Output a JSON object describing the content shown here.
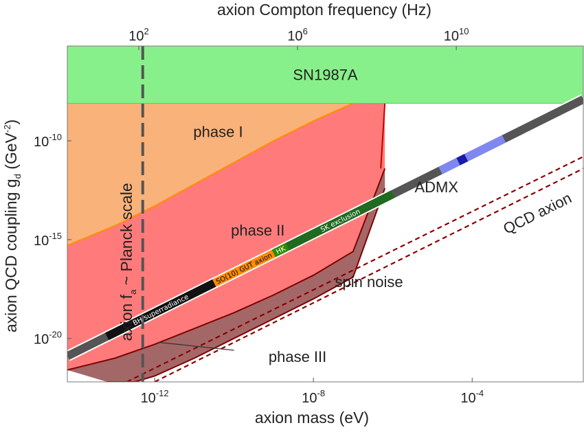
{
  "chart_data": {
    "type": "area",
    "xlabel": "axion mass (eV)",
    "top_xlabel": "axion Compton frequency (Hz)",
    "ylabel": "axion QCD coupling g",
    "ylabel_sub": "d",
    "ylabel_unit": " (GeV",
    "ylabel_unit_exp": "-2",
    "ylabel_unit_close": ")",
    "x_scale": "log",
    "y_scale": "log",
    "xlim_log10_eV": [
      -14.2,
      -1.2
    ],
    "ylim_log10": [
      -22.2,
      -5.2
    ],
    "top_xlim_log10_Hz": [
      0.2,
      13.2
    ],
    "x_ticks": [
      {
        "base": "10",
        "exp": "-12",
        "log": -12
      },
      {
        "base": "10",
        "exp": "-8",
        "log": -8
      },
      {
        "base": "10",
        "exp": "-4",
        "log": -4
      }
    ],
    "top_ticks": [
      {
        "base": "10",
        "exp": "2",
        "log": 2
      },
      {
        "base": "10",
        "exp": "6",
        "log": 6
      },
      {
        "base": "10",
        "exp": "10",
        "log": 10
      }
    ],
    "y_ticks": [
      {
        "base": "10",
        "exp": "-10",
        "log": -10
      },
      {
        "base": "10",
        "exp": "-15",
        "log": -15
      },
      {
        "base": "10",
        "exp": "-20",
        "log": -20
      }
    ],
    "planck_line": {
      "log_mass": -12.3,
      "label_pre": "axion f",
      "label_sub": "a",
      "label_post": " ~ Planck scale",
      "color": "#555555"
    },
    "regions": [
      {
        "name": "SN1987A",
        "color": "#88f08a",
        "edge": "#55cc55",
        "y_log_range": [
          -8.1,
          -5.2
        ]
      },
      {
        "name": "phase I",
        "color": "#f8b27a",
        "edge": "#ff8c00",
        "mass_cutoff_log": -6.2,
        "boundary": [
          [
            -14.2,
            -15.3
          ],
          [
            -13,
            -14.3
          ],
          [
            -12,
            -13.3
          ],
          [
            -11,
            -12.2
          ],
          [
            -10,
            -11.1
          ],
          [
            -9,
            -10.0
          ],
          [
            -8,
            -9.0
          ],
          [
            -7,
            -8.1
          ]
        ]
      },
      {
        "name": "phase II",
        "color": "#ff7b7b",
        "edge": "#c40000",
        "mass_cutoff_log": -6.2,
        "bottom_at_cutoff_log": -11.4,
        "lower_edge": [
          [
            -14.2,
            -21.6
          ],
          [
            -13,
            -21.0
          ],
          [
            -12,
            -20.3
          ],
          [
            -11,
            -19.5
          ],
          [
            -10,
            -18.7
          ],
          [
            -9,
            -17.8
          ],
          [
            -8,
            -16.8
          ],
          [
            -7,
            -15.6
          ],
          [
            -6.2,
            -11.4
          ]
        ]
      },
      {
        "name": "phase III",
        "color": "#9b5a5a",
        "edge": "#800000",
        "upper_edge": [
          [
            -14.2,
            -21.6
          ],
          [
            -13,
            -21.0
          ],
          [
            -12,
            -20.3
          ],
          [
            -11,
            -19.5
          ],
          [
            -10,
            -18.7
          ],
          [
            -9,
            -17.8
          ],
          [
            -8,
            -16.8
          ],
          [
            -7,
            -15.6
          ],
          [
            -6.2,
            -11.4
          ]
        ],
        "lower_edge": [
          [
            -13.2,
            -22.2
          ],
          [
            -12.5,
            -22.2
          ],
          [
            -12,
            -21.9
          ],
          [
            -11,
            -21.0
          ],
          [
            -10,
            -20.0
          ],
          [
            -9,
            -19.0
          ],
          [
            -8,
            -18.0
          ],
          [
            -7,
            -16.9
          ],
          [
            -6.2,
            -12.4
          ]
        ]
      }
    ],
    "spin_noise_lines": [
      {
        "points": [
          [
            -12.7,
            -22.2
          ],
          [
            -1.2,
            -10.8
          ]
        ],
        "color": "#8b0000"
      },
      {
        "points": [
          [
            -12.0,
            -22.2
          ],
          [
            -1.2,
            -11.4
          ]
        ],
        "color": "#8b0000"
      }
    ],
    "qcd_axion_band": {
      "points": [
        [
          -14.2,
          -20.9
        ],
        [
          -1.2,
          -7.9
        ]
      ],
      "segments": [
        {
          "label": "BH superradiance",
          "from": -13.2,
          "to": -10.5,
          "color": "#111111",
          "text_color": "#ffffff"
        },
        {
          "label": "SO(10) GUT axion",
          "from": -10.5,
          "to": -9.0,
          "color": "#ff8c00",
          "text_color": "#000000"
        },
        {
          "label": "HK",
          "from": -9.0,
          "to": -8.65,
          "color": "#2e8b00",
          "text_color": "#ffffff"
        },
        {
          "label": "SK exclusion",
          "from": -8.65,
          "to": -6.0,
          "color": "#1f6b1f",
          "text_color": "#ffffff"
        },
        {
          "label": "",
          "from": -4.8,
          "to": -4.35,
          "color": "#7f88f0",
          "text_color": "#ffffff"
        },
        {
          "label": "",
          "from": -4.35,
          "to": -4.15,
          "color": "#1a1aa8",
          "text_color": "#ffffff"
        },
        {
          "label": "",
          "from": -4.15,
          "to": -3.2,
          "color": "#7f88f0",
          "text_color": "#ffffff"
        }
      ]
    },
    "annotations": [
      {
        "text": "phase I",
        "mass_log": -10.4,
        "g_log": -9.8
      },
      {
        "text": "phase II",
        "mass_log": -9.4,
        "g_log": -14.8
      },
      {
        "text": "phase III",
        "mass_log": -8.4,
        "g_log": -21.2
      },
      {
        "text": "ADMX",
        "mass_log": -4.9,
        "g_log": -12.6
      },
      {
        "text": "QCD axion",
        "mass_log": -2.3,
        "g_log": -13.9
      },
      {
        "text": "spin noise",
        "mass_log": -6.6,
        "g_log": -17.4
      }
    ],
    "phase_iii_pointer": {
      "from": [
        -10.0,
        -20.6
      ],
      "to": [
        -11.9,
        -20.2
      ]
    }
  }
}
